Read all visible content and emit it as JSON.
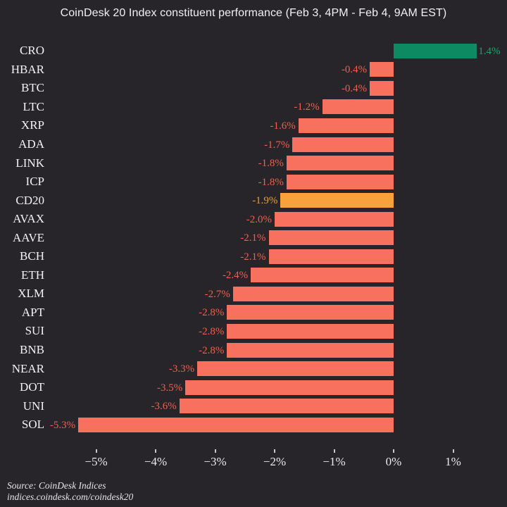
{
  "title": "CoinDesk 20 Index constituent performance (Feb 3, 4PM - Feb 4, 9AM EST)",
  "source": {
    "line1": "Source: CoinDesk Indices",
    "line2": "indices.coindesk.com/coindesk20"
  },
  "colors": {
    "background": "#272529",
    "bar_negative": "#f8705e",
    "bar_positive": "#0e8a62",
    "bar_index": "#f9a23c",
    "label_negative": "#ef604d",
    "label_positive": "#1da26d",
    "label_index": "#dfa03e",
    "title_text": "#f2f0f2",
    "category_text": "#f4f2f4",
    "axis_text": "#ece9ec"
  },
  "chart_data": {
    "type": "bar",
    "orientation": "horizontal",
    "title": "CoinDesk 20 Index constituent performance (Feb 3, 4PM - Feb 4, 9AM EST)",
    "categories": [
      "CRO",
      "HBAR",
      "BTC",
      "LTC",
      "XRP",
      "ADA",
      "LINK",
      "ICP",
      "CD20",
      "AVAX",
      "AAVE",
      "BCH",
      "ETH",
      "XLM",
      "APT",
      "SUI",
      "BNB",
      "NEAR",
      "DOT",
      "UNI",
      "SOL"
    ],
    "values": [
      1.4,
      -0.4,
      -0.4,
      -1.2,
      -1.6,
      -1.7,
      -1.8,
      -1.8,
      -1.9,
      -2.0,
      -2.1,
      -2.1,
      -2.4,
      -2.7,
      -2.8,
      -2.8,
      -2.8,
      -3.3,
      -3.5,
      -3.6,
      -5.3
    ],
    "value_labels": [
      "1.4%",
      "-0.4%",
      "-0.4%",
      "-1.2%",
      "-1.6%",
      "-1.7%",
      "-1.8%",
      "-1.8%",
      "-1.9%",
      "-2.0%",
      "-2.1%",
      "-2.1%",
      "-2.4%",
      "-2.7%",
      "-2.8%",
      "-2.8%",
      "-2.8%",
      "-3.3%",
      "-3.5%",
      "-3.6%",
      "-5.3%"
    ],
    "bar_kinds": [
      "positive",
      "negative",
      "negative",
      "negative",
      "negative",
      "negative",
      "negative",
      "negative",
      "index",
      "negative",
      "negative",
      "negative",
      "negative",
      "negative",
      "negative",
      "negative",
      "negative",
      "negative",
      "negative",
      "negative",
      "negative"
    ],
    "x_ticks": {
      "values": [
        -5,
        -4,
        -3,
        -2,
        -1,
        0,
        1
      ],
      "labels": [
        "−5%",
        "−4%",
        "−3%",
        "−2%",
        "−1%",
        "0%",
        "1%"
      ]
    },
    "xlim": [
      -5.87,
      1.9
    ],
    "grid": false,
    "legend": false,
    "highlighted_category": "CD20",
    "unit": "%"
  }
}
